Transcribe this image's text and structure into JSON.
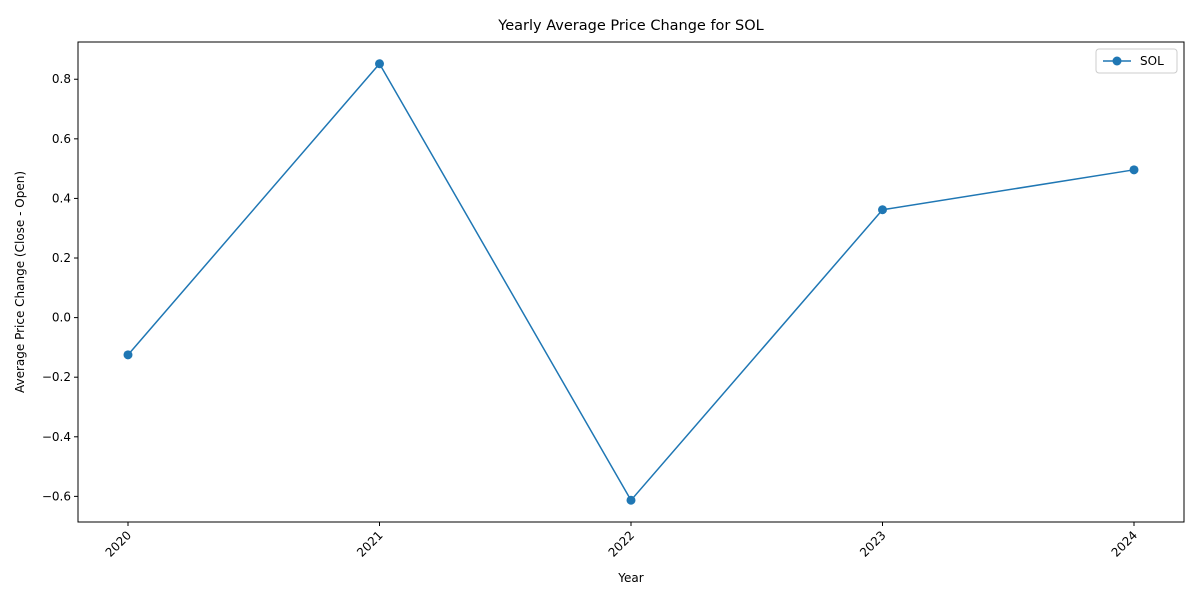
{
  "chart_data": {
    "type": "line",
    "title": "Yearly Average Price Change for SOL",
    "xlabel": "Year",
    "ylabel": "Average Price Change (Close - Open)",
    "categories": [
      "2020",
      "2021",
      "2022",
      "2023",
      "2024"
    ],
    "series": [
      {
        "name": "SOL",
        "color": "#1f77b4",
        "marker": "circle",
        "values": [
          -0.125,
          0.852,
          -0.613,
          0.362,
          0.496
        ]
      }
    ],
    "ylim": [
      -0.686,
      0.925
    ],
    "yticks": [
      "0.8",
      "0.6",
      "0.4",
      "0.2",
      "0.0",
      "−0.2",
      "−0.4",
      "−0.6"
    ],
    "ytick_values": [
      0.8,
      0.6,
      0.4,
      0.2,
      0.0,
      -0.2,
      -0.4,
      -0.6
    ],
    "grid": false,
    "legend_position": "top-right",
    "xtick_rotation": 45
  }
}
